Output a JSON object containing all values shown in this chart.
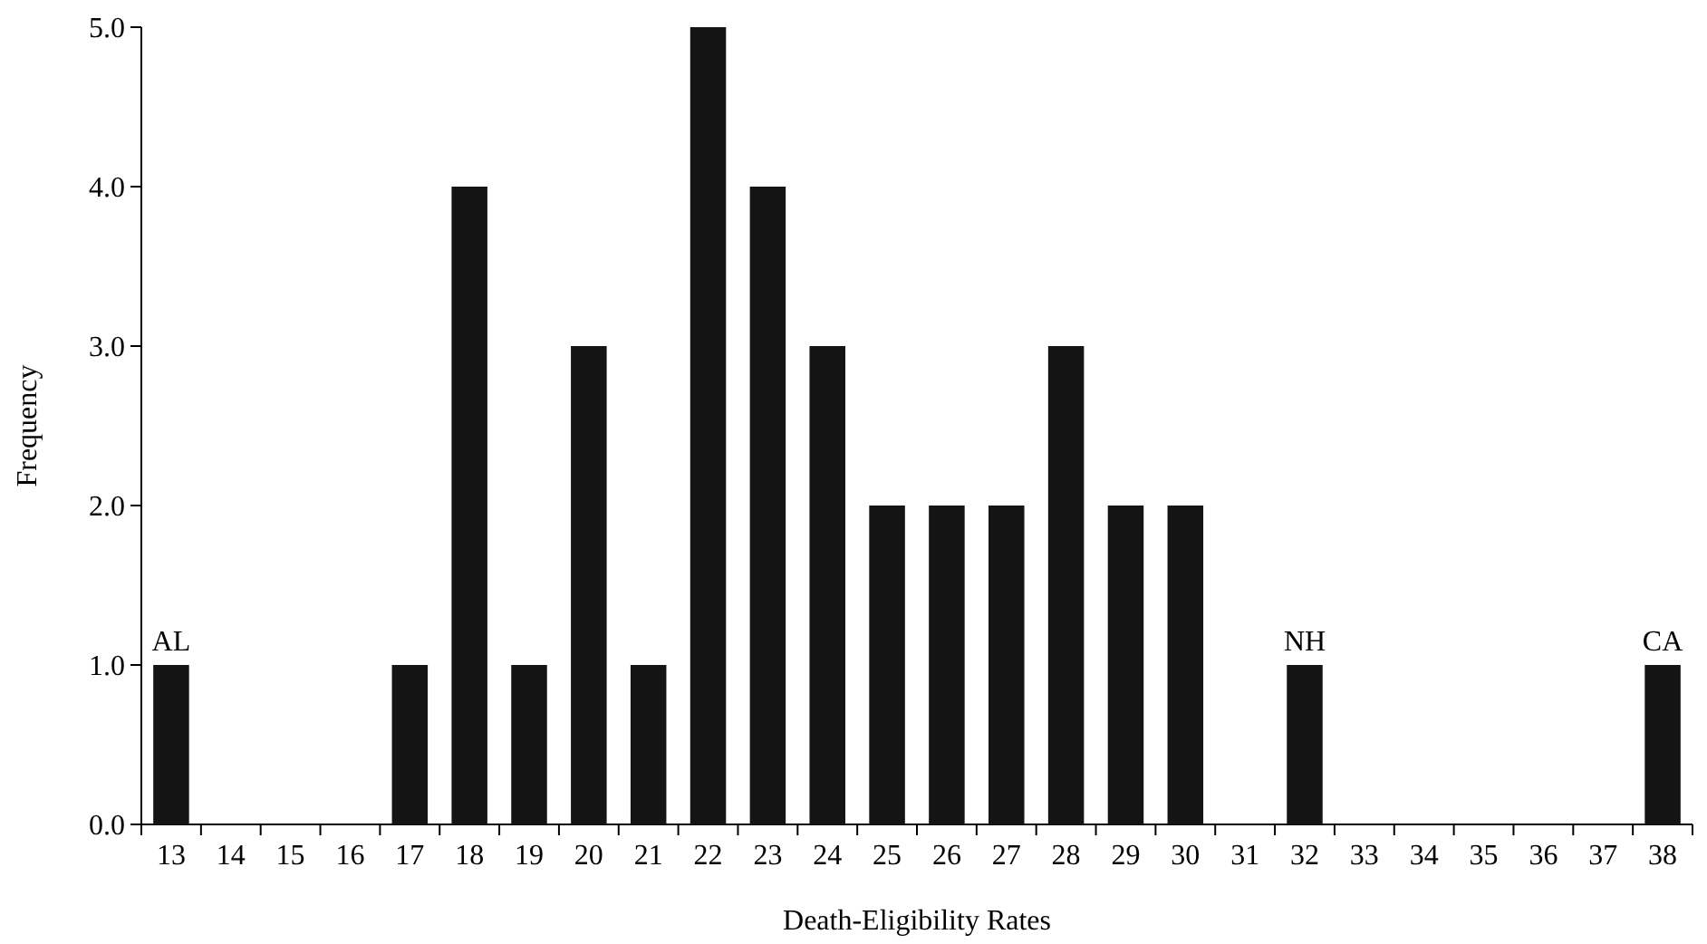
{
  "chart_data": {
    "type": "bar",
    "xlabel": "Death-Eligibility Rates",
    "ylabel": "Frequency",
    "categories": [
      "13",
      "14",
      "15",
      "16",
      "17",
      "18",
      "19",
      "20",
      "21",
      "22",
      "23",
      "24",
      "25",
      "26",
      "27",
      "28",
      "29",
      "30",
      "31",
      "32",
      "33",
      "34",
      "35",
      "36",
      "37",
      "38"
    ],
    "values": [
      1,
      0,
      0,
      0,
      1,
      4,
      1,
      3,
      1,
      5,
      4,
      3,
      2,
      2,
      2,
      3,
      2,
      2,
      0,
      1,
      0,
      0,
      0,
      0,
      0,
      1
    ],
    "color": "#141414",
    "ylim": [
      0,
      5
    ],
    "yticks": [
      {
        "value": 0,
        "label": "0.0"
      },
      {
        "value": 1,
        "label": "1.0"
      },
      {
        "value": 2,
        "label": "2.0"
      },
      {
        "value": 3,
        "label": "3.0"
      },
      {
        "value": 4,
        "label": "4.0"
      },
      {
        "value": 5,
        "label": "5.0"
      }
    ],
    "annotations": [
      {
        "text": "AL",
        "x": "13",
        "y": 1
      },
      {
        "text": "NH",
        "x": "32",
        "y": 1
      },
      {
        "text": "CA",
        "x": "38",
        "y": 1
      }
    ]
  }
}
